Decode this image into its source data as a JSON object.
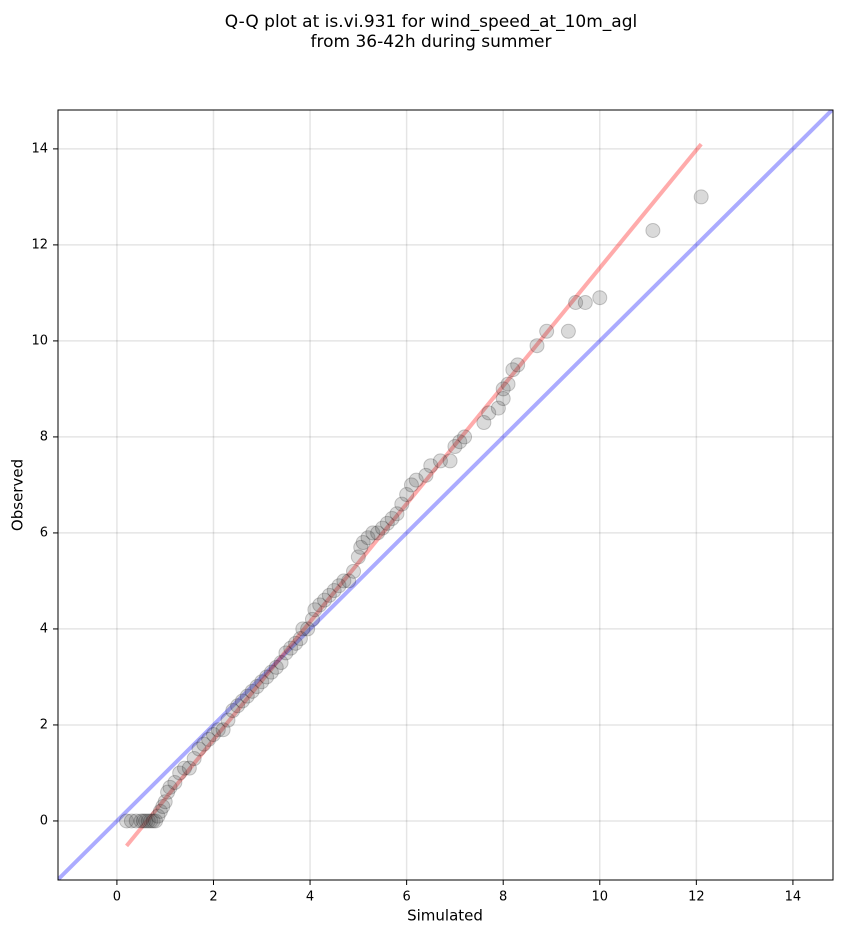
{
  "chart_data": {
    "type": "scatter",
    "title": [
      "Q-Q plot at is.vi.931 for wind_speed_at_10m_agl",
      "from 36-42h during summer"
    ],
    "xlabel": "Simulated",
    "ylabel": "Observed",
    "xlim": [
      -1.22,
      14.83
    ],
    "ylim": [
      -1.23,
      14.81
    ],
    "xticks": [
      0,
      2,
      4,
      6,
      8,
      10,
      12,
      14
    ],
    "yticks": [
      0,
      2,
      4,
      6,
      8,
      10,
      12,
      14
    ],
    "grid": true,
    "color": "#444444",
    "x": [
      0.2,
      0.3,
      0.4,
      0.5,
      0.55,
      0.6,
      0.65,
      0.7,
      0.75,
      0.8,
      0.85,
      0.9,
      0.95,
      1.0,
      1.05,
      1.1,
      1.2,
      1.3,
      1.4,
      1.5,
      1.6,
      1.7,
      1.8,
      1.9,
      2.0,
      2.1,
      2.2,
      2.3,
      2.4,
      2.5,
      2.6,
      2.7,
      2.8,
      2.9,
      3.0,
      3.1,
      3.2,
      3.3,
      3.4,
      3.5,
      3.6,
      3.7,
      3.8,
      3.85,
      3.95,
      4.05,
      4.1,
      4.2,
      4.3,
      4.4,
      4.5,
      4.6,
      4.7,
      4.8,
      4.9,
      5.0,
      5.05,
      5.1,
      5.2,
      5.3,
      5.4,
      5.5,
      5.6,
      5.7,
      5.8,
      5.9,
      6.0,
      6.1,
      6.2,
      6.4,
      6.5,
      6.7,
      6.9,
      7.0,
      7.1,
      7.2,
      7.6,
      7.7,
      7.9,
      8.0,
      8.0,
      8.1,
      8.2,
      8.3,
      8.7,
      8.9,
      9.35,
      9.5,
      9.7,
      10.0,
      11.1,
      12.1
    ],
    "values": [
      0,
      0,
      0,
      0,
      0,
      0,
      0,
      0,
      0,
      0,
      0.1,
      0.2,
      0.3,
      0.4,
      0.6,
      0.7,
      0.8,
      1.0,
      1.1,
      1.1,
      1.3,
      1.5,
      1.6,
      1.7,
      1.8,
      1.9,
      1.9,
      2.1,
      2.3,
      2.4,
      2.5,
      2.6,
      2.7,
      2.8,
      2.9,
      3.0,
      3.1,
      3.2,
      3.3,
      3.5,
      3.6,
      3.7,
      3.8,
      4.0,
      4.0,
      4.2,
      4.4,
      4.5,
      4.6,
      4.7,
      4.8,
      4.9,
      5.0,
      5.0,
      5.2,
      5.5,
      5.7,
      5.8,
      5.9,
      6.0,
      6.0,
      6.1,
      6.2,
      6.3,
      6.4,
      6.6,
      6.8,
      7.0,
      7.1,
      7.2,
      7.4,
      7.5,
      7.5,
      7.8,
      7.9,
      8.0,
      8.3,
      8.5,
      8.6,
      8.8,
      9.0,
      9.1,
      9.4,
      9.5,
      9.9,
      10.2,
      10.2,
      10.8,
      10.8,
      10.9,
      12.3,
      13.0
    ],
    "reference_lines": [
      {
        "color": "#0000ff",
        "x": [
          -1.22,
          14.83
        ],
        "y": [
          -1.22,
          14.83
        ]
      },
      {
        "color": "#ff0000",
        "x": [
          0.2,
          12.1
        ],
        "y": [
          -0.52,
          14.1
        ]
      }
    ]
  }
}
